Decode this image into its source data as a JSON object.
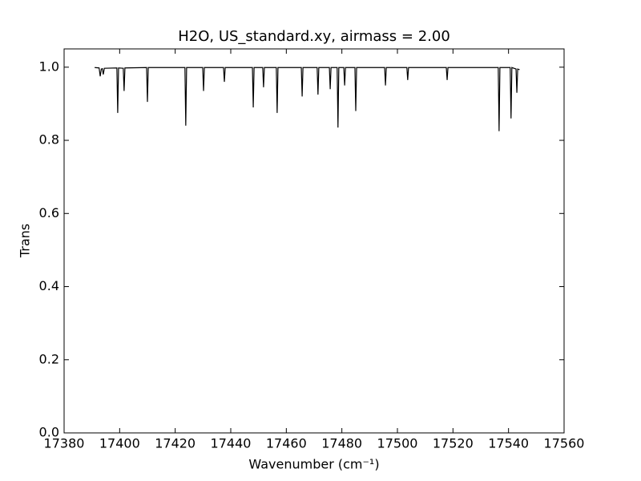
{
  "chart_data": {
    "type": "line",
    "title": "H2O, US_standard.xy, airmass = 2.00",
    "x_label": "Wavenumber (cm⁻¹)",
    "y_label": "Trans",
    "color": "#000000",
    "x": [
      17391,
      17392.6,
      17393,
      17393.4,
      17393.8,
      17394.1,
      17394.5,
      17399,
      17399.3,
      17399.6,
      17401.3,
      17401.6,
      17401.9,
      17409.7,
      17410,
      17410.3,
      17423.5,
      17423.8,
      17424.1,
      17429.9,
      17430.2,
      17430.5,
      17437.4,
      17437.7,
      17438,
      17447.8,
      17448.1,
      17448.4,
      17451.5,
      17451.8,
      17452.1,
      17456.4,
      17456.7,
      17457,
      17465.4,
      17465.7,
      17466,
      17471.1,
      17471.4,
      17471.7,
      17475.5,
      17475.8,
      17476.1,
      17478.3,
      17478.6,
      17478.9,
      17480.7,
      17481,
      17481.3,
      17484.7,
      17485,
      17485.3,
      17495.4,
      17495.7,
      17496,
      17503.4,
      17503.7,
      17504,
      17517.6,
      17517.9,
      17518.2,
      17536.3,
      17536.6,
      17536.9,
      17540.6,
      17540.9,
      17541.2,
      17542.7,
      17543,
      17543.3,
      17544
    ],
    "values": [
      0.999,
      0.998,
      0.975,
      0.995,
      0.996,
      0.98,
      0.997,
      0.998,
      0.875,
      0.998,
      0.997,
      0.935,
      0.998,
      0.999,
      0.905,
      0.999,
      0.999,
      0.84,
      0.999,
      0.999,
      0.935,
      0.999,
      0.999,
      0.96,
      0.999,
      0.999,
      0.89,
      0.999,
      0.999,
      0.945,
      0.999,
      0.999,
      0.875,
      0.999,
      0.999,
      0.92,
      0.999,
      0.999,
      0.925,
      0.999,
      0.999,
      0.94,
      0.999,
      0.999,
      0.835,
      0.999,
      0.999,
      0.95,
      0.999,
      0.999,
      0.88,
      0.999,
      0.999,
      0.95,
      0.999,
      0.999,
      0.965,
      0.999,
      0.999,
      0.965,
      0.999,
      0.999,
      0.825,
      0.999,
      0.999,
      0.86,
      0.999,
      0.995,
      0.93,
      0.995,
      0.993
    ],
    "xlim": [
      17380,
      17560
    ],
    "xticks": [
      17380,
      17400,
      17420,
      17440,
      17460,
      17480,
      17500,
      17520,
      17540,
      17560
    ],
    "ylim": [
      0,
      1.05
    ],
    "yticks": [
      {
        "value": 0,
        "label": "0.0"
      },
      0.2,
      0.4,
      0.6,
      0.8,
      {
        "value": 1,
        "label": "1.0"
      }
    ]
  }
}
